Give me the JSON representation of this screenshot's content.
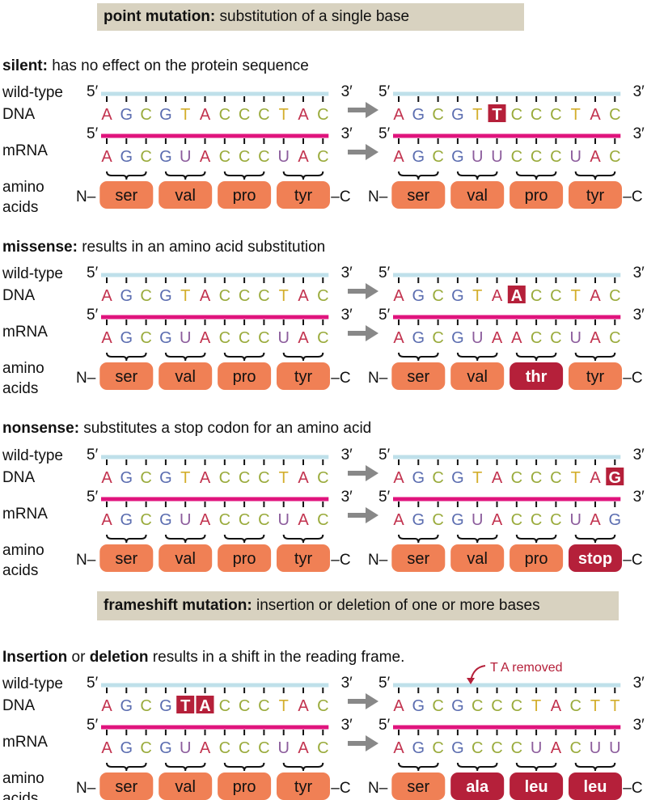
{
  "banners": [
    {
      "bold": "point mutation:",
      "text": " substitution of a single base"
    },
    {
      "bold": "frameshift mutation:",
      "text": " insertion or deletion of one or more bases"
    }
  ],
  "row_labels": {
    "dna1": "wild-type",
    "dna2": "DNA",
    "mrna": "mRNA",
    "aa1": "amino",
    "aa2": "acids"
  },
  "ends": {
    "five": "5′",
    "three": "3′",
    "n": "N–",
    "c": "–C"
  },
  "colors": {
    "A": "#c2334f",
    "G": "#5b6db0",
    "C": "#9aab3c",
    "T": "#d3ae2c",
    "U": "#8c5c9c",
    "dna_line": "#bfe0ea",
    "mrna_line": "#e0147d",
    "aa_box": "#f08055",
    "mutant": "#b5203a",
    "banner": "#d8d2c0",
    "arrow": "#888888"
  },
  "panels": [
    {
      "heading_bold": "silent:",
      "heading_text": " has no effect on the protein sequence",
      "left": {
        "dna": "AGCGTACCCTAC",
        "mrna": "AGCGUACCCUAC",
        "aa": [
          "ser",
          "val",
          "pro",
          "tyr"
        ],
        "dna_hl": [],
        "aa_hl": []
      },
      "right": {
        "dna": "AGCGTTCCCTAC",
        "mrna": "AGCGUUCCCUAC",
        "aa": [
          "ser",
          "val",
          "pro",
          "tyr"
        ],
        "dna_hl": [
          5
        ],
        "aa_hl": []
      }
    },
    {
      "heading_bold": "missense:",
      "heading_text": " results in an amino acid substitution",
      "left": {
        "dna": "AGCGTACCCTAC",
        "mrna": "AGCGUACCCUAC",
        "aa": [
          "ser",
          "val",
          "pro",
          "tyr"
        ],
        "dna_hl": [],
        "aa_hl": []
      },
      "right": {
        "dna": "AGCGTAACCTAC",
        "mrna": "AGCGUAACCUAC",
        "aa": [
          "ser",
          "val",
          "thr",
          "tyr"
        ],
        "dna_hl": [
          6
        ],
        "aa_hl": [
          2
        ]
      }
    },
    {
      "heading_bold": "nonsense:",
      "heading_text": " substitutes a stop codon for an amino acid",
      "left": {
        "dna": "AGCGTACCCTAC",
        "mrna": "AGCGUACCCUAC",
        "aa": [
          "ser",
          "val",
          "pro",
          "tyr"
        ],
        "dna_hl": [],
        "aa_hl": []
      },
      "right": {
        "dna": "AGCGTACCCTAG",
        "mrna": "AGCGUACCCUAG",
        "aa": [
          "ser",
          "val",
          "pro",
          "stop"
        ],
        "dna_hl": [
          11
        ],
        "aa_hl": [
          3
        ]
      }
    },
    {
      "heading_bold": "Insertion",
      "heading_mid": " or ",
      "heading_bold2": "deletion",
      "heading_text": " results in a shift in the reading frame.",
      "annotation": "T A removed",
      "left": {
        "dna": "AGCGTACCCTAC",
        "mrna": "AGCGUACCCUAC",
        "aa": [
          "ser",
          "val",
          "pro",
          "tyr"
        ],
        "dna_hl": [
          4,
          5
        ],
        "aa_hl": []
      },
      "right": {
        "dna": "AGCGCCCTACTT",
        "mrna": "AGCGCCCUACUU",
        "aa": [
          "ser",
          "ala",
          "leu",
          "leu"
        ],
        "dna_hl": [],
        "aa_hl": [
          1,
          2,
          3
        ]
      }
    }
  ]
}
